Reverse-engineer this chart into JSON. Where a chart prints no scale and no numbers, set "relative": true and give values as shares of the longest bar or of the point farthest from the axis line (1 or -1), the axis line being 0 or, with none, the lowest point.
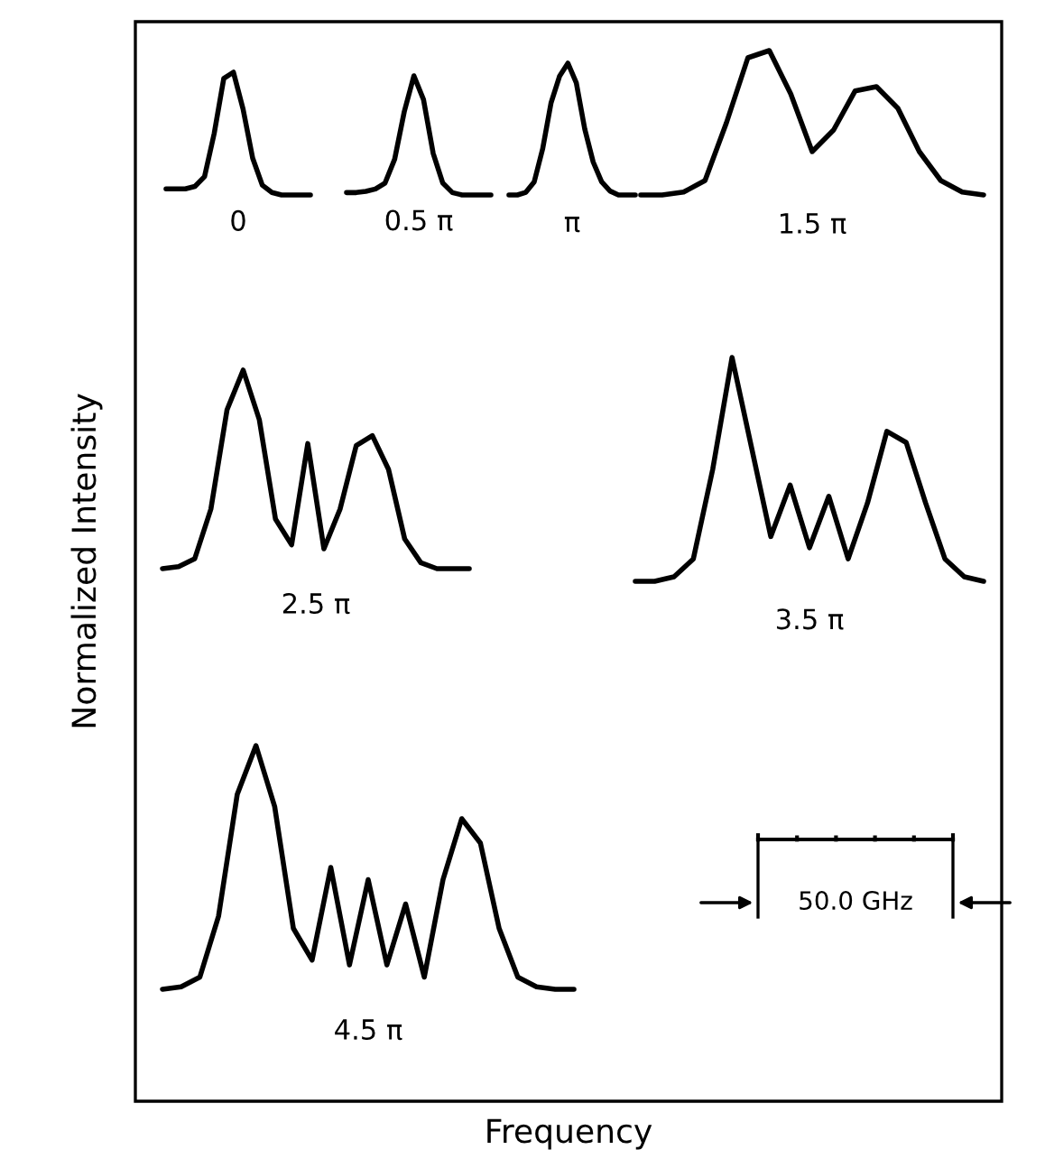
{
  "chart_data": [
    {
      "type": "line",
      "relative": true,
      "color": "#000000",
      "annotations": [
        "0"
      ],
      "categories": [
        null,
        null,
        null,
        null,
        null,
        null,
        null,
        null,
        null,
        null,
        null,
        null,
        null,
        null,
        null,
        null
      ],
      "values": [
        0.05,
        0.05,
        0.05,
        0.07,
        0.15,
        0.5,
        0.95,
        1,
        0.7,
        0.3,
        0.08,
        0.02,
        0,
        0,
        0,
        0
      ]
    },
    {
      "type": "line",
      "relative": true,
      "color": "#000000",
      "annotations": [
        "0.5 π"
      ],
      "categories": [
        null,
        null,
        null,
        null,
        null,
        null,
        null,
        null,
        null,
        null,
        null,
        null,
        null,
        null,
        null,
        null
      ],
      "values": [
        0.02,
        0.02,
        0.03,
        0.05,
        0.1,
        0.3,
        0.7,
        1,
        0.8,
        0.35,
        0.1,
        0.02,
        0,
        0,
        0,
        0
      ]
    },
    {
      "type": "line",
      "relative": true,
      "color": "#000000",
      "annotations": [
        "π"
      ],
      "categories": [
        null,
        null,
        null,
        null,
        null,
        null,
        null,
        null,
        null,
        null,
        null,
        null,
        null,
        null,
        null,
        null
      ],
      "values": [
        0,
        0,
        0.02,
        0.1,
        0.35,
        0.7,
        0.9,
        1,
        0.85,
        0.5,
        0.25,
        0.1,
        0.03,
        0,
        0,
        0
      ]
    },
    {
      "type": "line",
      "relative": true,
      "color": "#000000",
      "annotations": [
        "1.5 π"
      ],
      "categories": [
        null,
        null,
        null,
        null,
        null,
        null,
        null,
        null,
        null,
        null,
        null,
        null,
        null,
        null,
        null,
        null,
        null
      ],
      "values": [
        0,
        0,
        0.02,
        0.1,
        0.5,
        0.95,
        1,
        0.7,
        0.3,
        0.45,
        0.72,
        0.75,
        0.6,
        0.3,
        0.1,
        0.02,
        0
      ]
    },
    {
      "type": "line",
      "relative": true,
      "color": "#000000",
      "annotations": [
        "2.5 π"
      ],
      "categories": [
        null,
        null,
        null,
        null,
        null,
        null,
        null,
        null,
        null,
        null,
        null,
        null,
        null,
        null,
        null,
        null,
        null,
        null,
        null,
        null
      ],
      "values": [
        0,
        0.01,
        0.05,
        0.3,
        0.8,
        1,
        0.75,
        0.25,
        0.12,
        0.63,
        0.1,
        0.3,
        0.62,
        0.67,
        0.5,
        0.15,
        0.03,
        0,
        0,
        0
      ]
    },
    {
      "type": "line",
      "relative": true,
      "color": "#000000",
      "annotations": [
        "3.5 π"
      ],
      "categories": [
        null,
        null,
        null,
        null,
        null,
        null,
        null,
        null,
        null,
        null,
        null,
        null,
        null,
        null,
        null,
        null,
        null,
        null,
        null
      ],
      "values": [
        0,
        0,
        0.02,
        0.1,
        0.5,
        1,
        0.6,
        0.2,
        0.43,
        0.15,
        0.38,
        0.1,
        0.35,
        0.67,
        0.62,
        0.35,
        0.1,
        0.02,
        0
      ]
    },
    {
      "type": "line",
      "relative": true,
      "color": "#000000",
      "annotations": [
        "4.5 π"
      ],
      "categories": [
        null,
        null,
        null,
        null,
        null,
        null,
        null,
        null,
        null,
        null,
        null,
        null,
        null,
        null,
        null,
        null,
        null,
        null,
        null,
        null,
        null,
        null,
        null
      ],
      "values": [
        0,
        0.01,
        0.05,
        0.3,
        0.8,
        1,
        0.75,
        0.25,
        0.12,
        0.5,
        0.1,
        0.45,
        0.1,
        0.35,
        0.05,
        0.45,
        0.7,
        0.6,
        0.25,
        0.05,
        0.01,
        0,
        0
      ]
    },
    {
      "type": "other",
      "xlabel": "Frequency",
      "ylabel": "Normalized Intensity",
      "annotations": [
        "50.0 GHz"
      ]
    }
  ]
}
